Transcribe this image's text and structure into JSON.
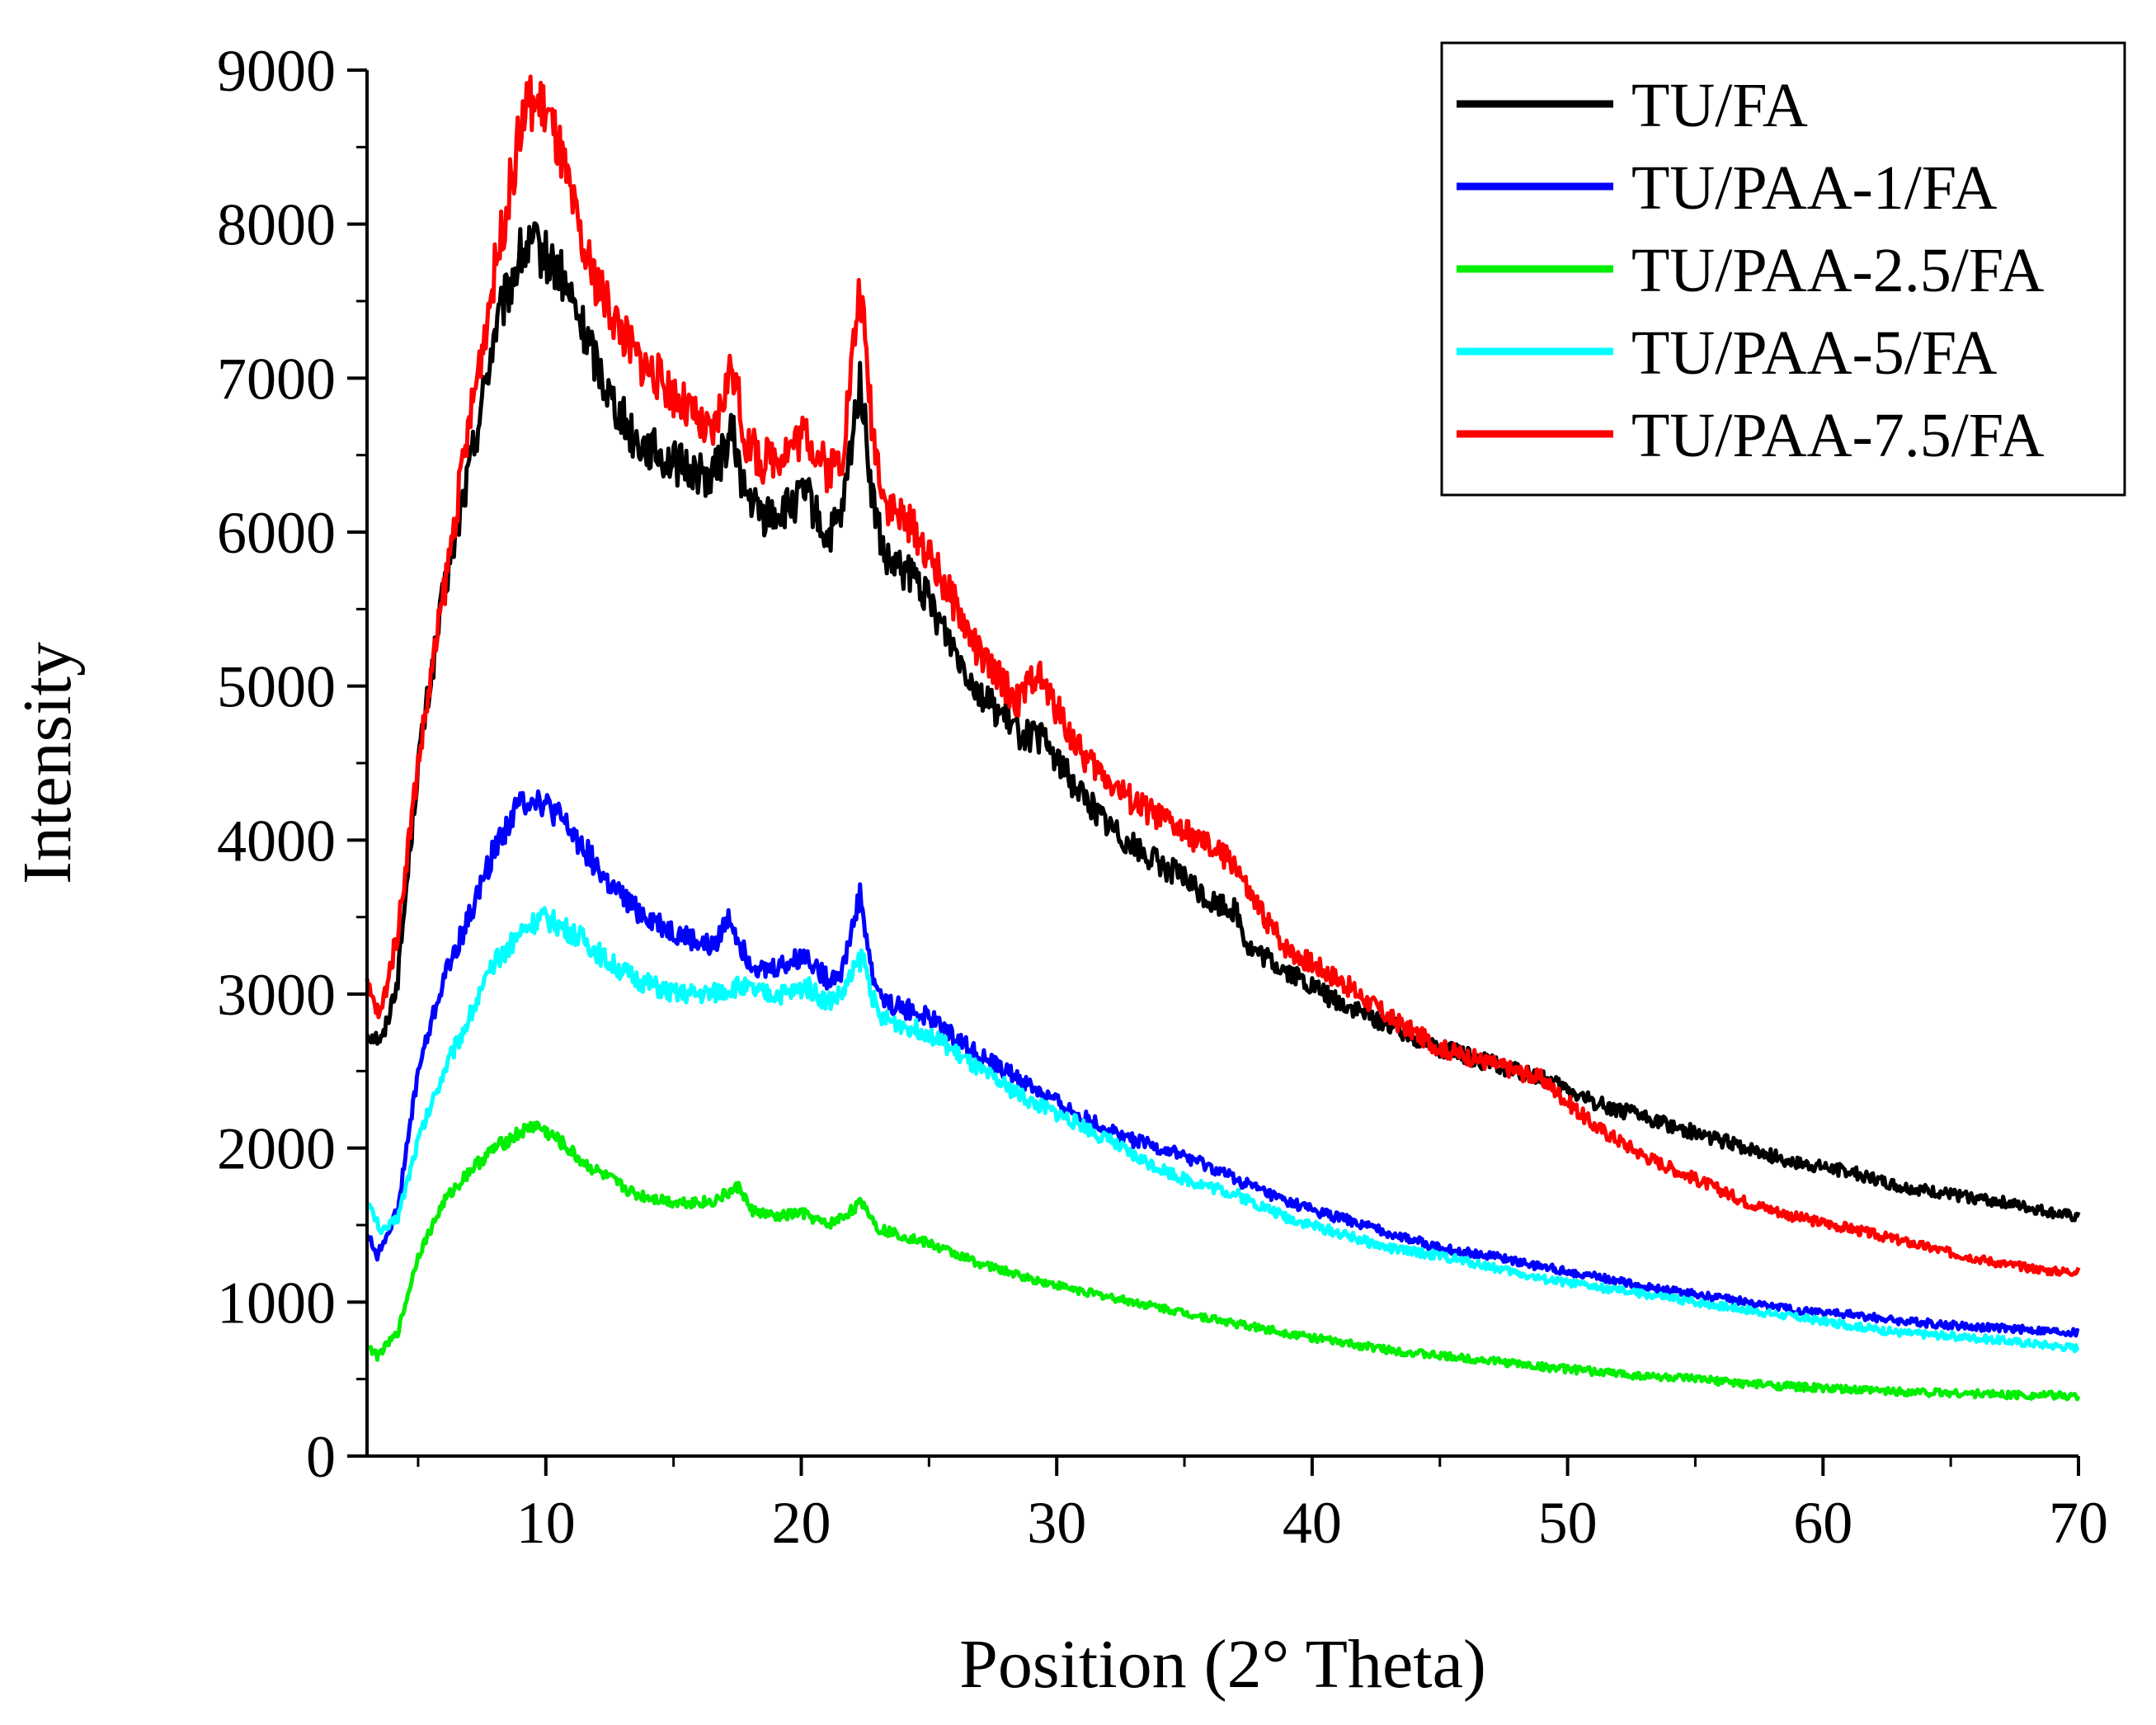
{
  "chart_data": {
    "type": "line",
    "title": "",
    "xlabel": "Position (2° Theta)",
    "ylabel": "Intensity",
    "xlim": [
      3,
      70
    ],
    "ylim": [
      0,
      9000
    ],
    "x_ticks": [
      "10",
      "20",
      "30",
      "40",
      "50",
      "60",
      "70"
    ],
    "y_ticks": [
      "0",
      "1000",
      "2000",
      "3000",
      "4000",
      "5000",
      "6000",
      "7000",
      "8000",
      "9000"
    ],
    "grid": false,
    "legend_position": "top-right",
    "series": [
      {
        "name": "TU/FA",
        "color": "#000000",
        "points": [
          [
            3,
            2750
          ],
          [
            3.6,
            2700
          ],
          [
            4.2,
            3100
          ],
          [
            5,
            4500
          ],
          [
            6,
            5600
          ],
          [
            7,
            6400
          ],
          [
            8,
            7300
          ],
          [
            9,
            7800
          ],
          [
            9.6,
            7850
          ],
          [
            10.5,
            7700
          ],
          [
            11.5,
            7300
          ],
          [
            12.5,
            6900
          ],
          [
            13.5,
            6600
          ],
          [
            15,
            6450
          ],
          [
            16.5,
            6350
          ],
          [
            17.3,
            6650
          ],
          [
            17.8,
            6250
          ],
          [
            18.5,
            6100
          ],
          [
            19.5,
            6150
          ],
          [
            20.2,
            6250
          ],
          [
            21,
            5950
          ],
          [
            21.6,
            6100
          ],
          [
            22.3,
            7000
          ],
          [
            22.8,
            6200
          ],
          [
            23.3,
            5800
          ],
          [
            24.5,
            5700
          ],
          [
            25.5,
            5400
          ],
          [
            27,
            4950
          ],
          [
            28.5,
            4700
          ],
          [
            29.5,
            4650
          ],
          [
            30.5,
            4400
          ],
          [
            32,
            4100
          ],
          [
            33.5,
            3900
          ],
          [
            35,
            3750
          ],
          [
            36,
            3600
          ],
          [
            37,
            3550
          ],
          [
            37.5,
            3300
          ],
          [
            39,
            3150
          ],
          [
            41,
            2950
          ],
          [
            43,
            2800
          ],
          [
            45,
            2650
          ],
          [
            47,
            2550
          ],
          [
            49,
            2450
          ],
          [
            51,
            2300
          ],
          [
            53,
            2200
          ],
          [
            55,
            2100
          ],
          [
            57,
            2000
          ],
          [
            59,
            1900
          ],
          [
            61,
            1850
          ],
          [
            63,
            1750
          ],
          [
            65,
            1700
          ],
          [
            67,
            1650
          ],
          [
            69,
            1580
          ],
          [
            70,
            1550
          ]
        ]
      },
      {
        "name": "TU/PAA-1/FA",
        "color": "#0000ff",
        "points": [
          [
            3,
            1450
          ],
          [
            3.4,
            1300
          ],
          [
            4.2,
            1600
          ],
          [
            5,
            2500
          ],
          [
            6,
            3100
          ],
          [
            7,
            3500
          ],
          [
            8,
            3950
          ],
          [
            9,
            4250
          ],
          [
            9.6,
            4280
          ],
          [
            10.5,
            4150
          ],
          [
            11.5,
            3950
          ],
          [
            12.5,
            3700
          ],
          [
            13.5,
            3550
          ],
          [
            15,
            3400
          ],
          [
            16.5,
            3300
          ],
          [
            17.2,
            3500
          ],
          [
            17.8,
            3250
          ],
          [
            18.5,
            3150
          ],
          [
            19.5,
            3200
          ],
          [
            20.2,
            3250
          ],
          [
            21,
            3100
          ],
          [
            21.6,
            3150
          ],
          [
            22.3,
            3650
          ],
          [
            22.8,
            3100
          ],
          [
            23.3,
            2950
          ],
          [
            25,
            2850
          ],
          [
            27,
            2600
          ],
          [
            29,
            2400
          ],
          [
            31,
            2200
          ],
          [
            33,
            2050
          ],
          [
            35,
            1950
          ],
          [
            37,
            1800
          ],
          [
            39,
            1650
          ],
          [
            41,
            1550
          ],
          [
            43,
            1450
          ],
          [
            45,
            1350
          ],
          [
            47,
            1300
          ],
          [
            49,
            1230
          ],
          [
            51,
            1170
          ],
          [
            53,
            1100
          ],
          [
            55,
            1050
          ],
          [
            57,
            1000
          ],
          [
            59,
            950
          ],
          [
            61,
            920
          ],
          [
            63,
            880
          ],
          [
            65,
            850
          ],
          [
            67,
            830
          ],
          [
            70,
            800
          ]
        ]
      },
      {
        "name": "TU/PAA-2.5/FA",
        "color": "#00ee00",
        "points": [
          [
            3,
            720
          ],
          [
            3.4,
            650
          ],
          [
            4.2,
            800
          ],
          [
            5,
            1300
          ],
          [
            6,
            1650
          ],
          [
            7,
            1850
          ],
          [
            8,
            2000
          ],
          [
            9,
            2100
          ],
          [
            9.6,
            2150
          ],
          [
            10.5,
            2050
          ],
          [
            11.5,
            1900
          ],
          [
            12.5,
            1800
          ],
          [
            13.5,
            1700
          ],
          [
            15,
            1650
          ],
          [
            16.5,
            1650
          ],
          [
            17.6,
            1750
          ],
          [
            18,
            1600
          ],
          [
            19,
            1550
          ],
          [
            20,
            1580
          ],
          [
            21,
            1500
          ],
          [
            21.6,
            1550
          ],
          [
            22.4,
            1650
          ],
          [
            23,
            1480
          ],
          [
            25,
            1380
          ],
          [
            27,
            1250
          ],
          [
            29,
            1150
          ],
          [
            31,
            1070
          ],
          [
            33,
            1000
          ],
          [
            35,
            930
          ],
          [
            37,
            860
          ],
          [
            39,
            800
          ],
          [
            41,
            740
          ],
          [
            43,
            690
          ],
          [
            45,
            650
          ],
          [
            47,
            620
          ],
          [
            49,
            580
          ],
          [
            51,
            550
          ],
          [
            53,
            520
          ],
          [
            55,
            500
          ],
          [
            57,
            470
          ],
          [
            59,
            450
          ],
          [
            61,
            430
          ],
          [
            63,
            420
          ],
          [
            65,
            410
          ],
          [
            67,
            400
          ],
          [
            70,
            390
          ]
        ]
      },
      {
        "name": "TU/PAA-5/FA",
        "color": "#00ffff",
        "points": [
          [
            3,
            1650
          ],
          [
            3.6,
            1450
          ],
          [
            4.2,
            1550
          ],
          [
            5,
            2050
          ],
          [
            6,
            2500
          ],
          [
            7,
            2850
          ],
          [
            8,
            3200
          ],
          [
            9,
            3400
          ],
          [
            9.8,
            3500
          ],
          [
            10.5,
            3450
          ],
          [
            11.5,
            3350
          ],
          [
            12.5,
            3200
          ],
          [
            13.5,
            3100
          ],
          [
            15,
            3000
          ],
          [
            16.5,
            3000
          ],
          [
            17.5,
            3050
          ],
          [
            18.5,
            3000
          ],
          [
            19.5,
            3000
          ],
          [
            20.2,
            3050
          ],
          [
            21,
            2950
          ],
          [
            21.6,
            3000
          ],
          [
            22.4,
            3250
          ],
          [
            23,
            2850
          ],
          [
            25,
            2750
          ],
          [
            27,
            2500
          ],
          [
            29,
            2300
          ],
          [
            31,
            2150
          ],
          [
            33,
            1950
          ],
          [
            35,
            1800
          ],
          [
            37,
            1700
          ],
          [
            39,
            1550
          ],
          [
            41,
            1450
          ],
          [
            43,
            1350
          ],
          [
            45,
            1300
          ],
          [
            47,
            1230
          ],
          [
            49,
            1150
          ],
          [
            51,
            1100
          ],
          [
            53,
            1050
          ],
          [
            55,
            1000
          ],
          [
            57,
            950
          ],
          [
            59,
            900
          ],
          [
            61,
            850
          ],
          [
            63,
            800
          ],
          [
            65,
            780
          ],
          [
            67,
            750
          ],
          [
            70,
            700
          ]
        ]
      },
      {
        "name": "TU/PAA-7.5/FA",
        "color": "#ff0000",
        "points": [
          [
            3,
            3050
          ],
          [
            3.5,
            2850
          ],
          [
            4.2,
            3400
          ],
          [
            5,
            4500
          ],
          [
            6,
            5600
          ],
          [
            7,
            6700
          ],
          [
            8,
            7700
          ],
          [
            9,
            8600
          ],
          [
            9.3,
            8800
          ],
          [
            10,
            8750
          ],
          [
            10.5,
            8500
          ],
          [
            11.5,
            7800
          ],
          [
            12.5,
            7450
          ],
          [
            13.5,
            7150
          ],
          [
            15,
            6900
          ],
          [
            16.5,
            6600
          ],
          [
            17.3,
            7100
          ],
          [
            17.8,
            6600
          ],
          [
            18.5,
            6450
          ],
          [
            19.5,
            6550
          ],
          [
            20.2,
            6650
          ],
          [
            21,
            6400
          ],
          [
            21.6,
            6500
          ],
          [
            22.3,
            7600
          ],
          [
            22.8,
            6650
          ],
          [
            23.3,
            6200
          ],
          [
            24.5,
            6000
          ],
          [
            25.5,
            5700
          ],
          [
            27,
            5200
          ],
          [
            28.5,
            4900
          ],
          [
            29.2,
            5100
          ],
          [
            30,
            4850
          ],
          [
            31,
            4550
          ],
          [
            33,
            4250
          ],
          [
            35,
            4050
          ],
          [
            36.5,
            3900
          ],
          [
            37,
            3850
          ],
          [
            37.5,
            3650
          ],
          [
            39,
            3300
          ],
          [
            41,
            3100
          ],
          [
            43,
            2850
          ],
          [
            45,
            2650
          ],
          [
            47,
            2550
          ],
          [
            49,
            2450
          ],
          [
            50,
            2300
          ],
          [
            51,
            2150
          ],
          [
            53,
            1950
          ],
          [
            55,
            1800
          ],
          [
            57,
            1650
          ],
          [
            59,
            1550
          ],
          [
            61,
            1480
          ],
          [
            63,
            1400
          ],
          [
            65,
            1320
          ],
          [
            67,
            1250
          ],
          [
            69,
            1200
          ],
          [
            70,
            1200
          ]
        ]
      }
    ]
  }
}
